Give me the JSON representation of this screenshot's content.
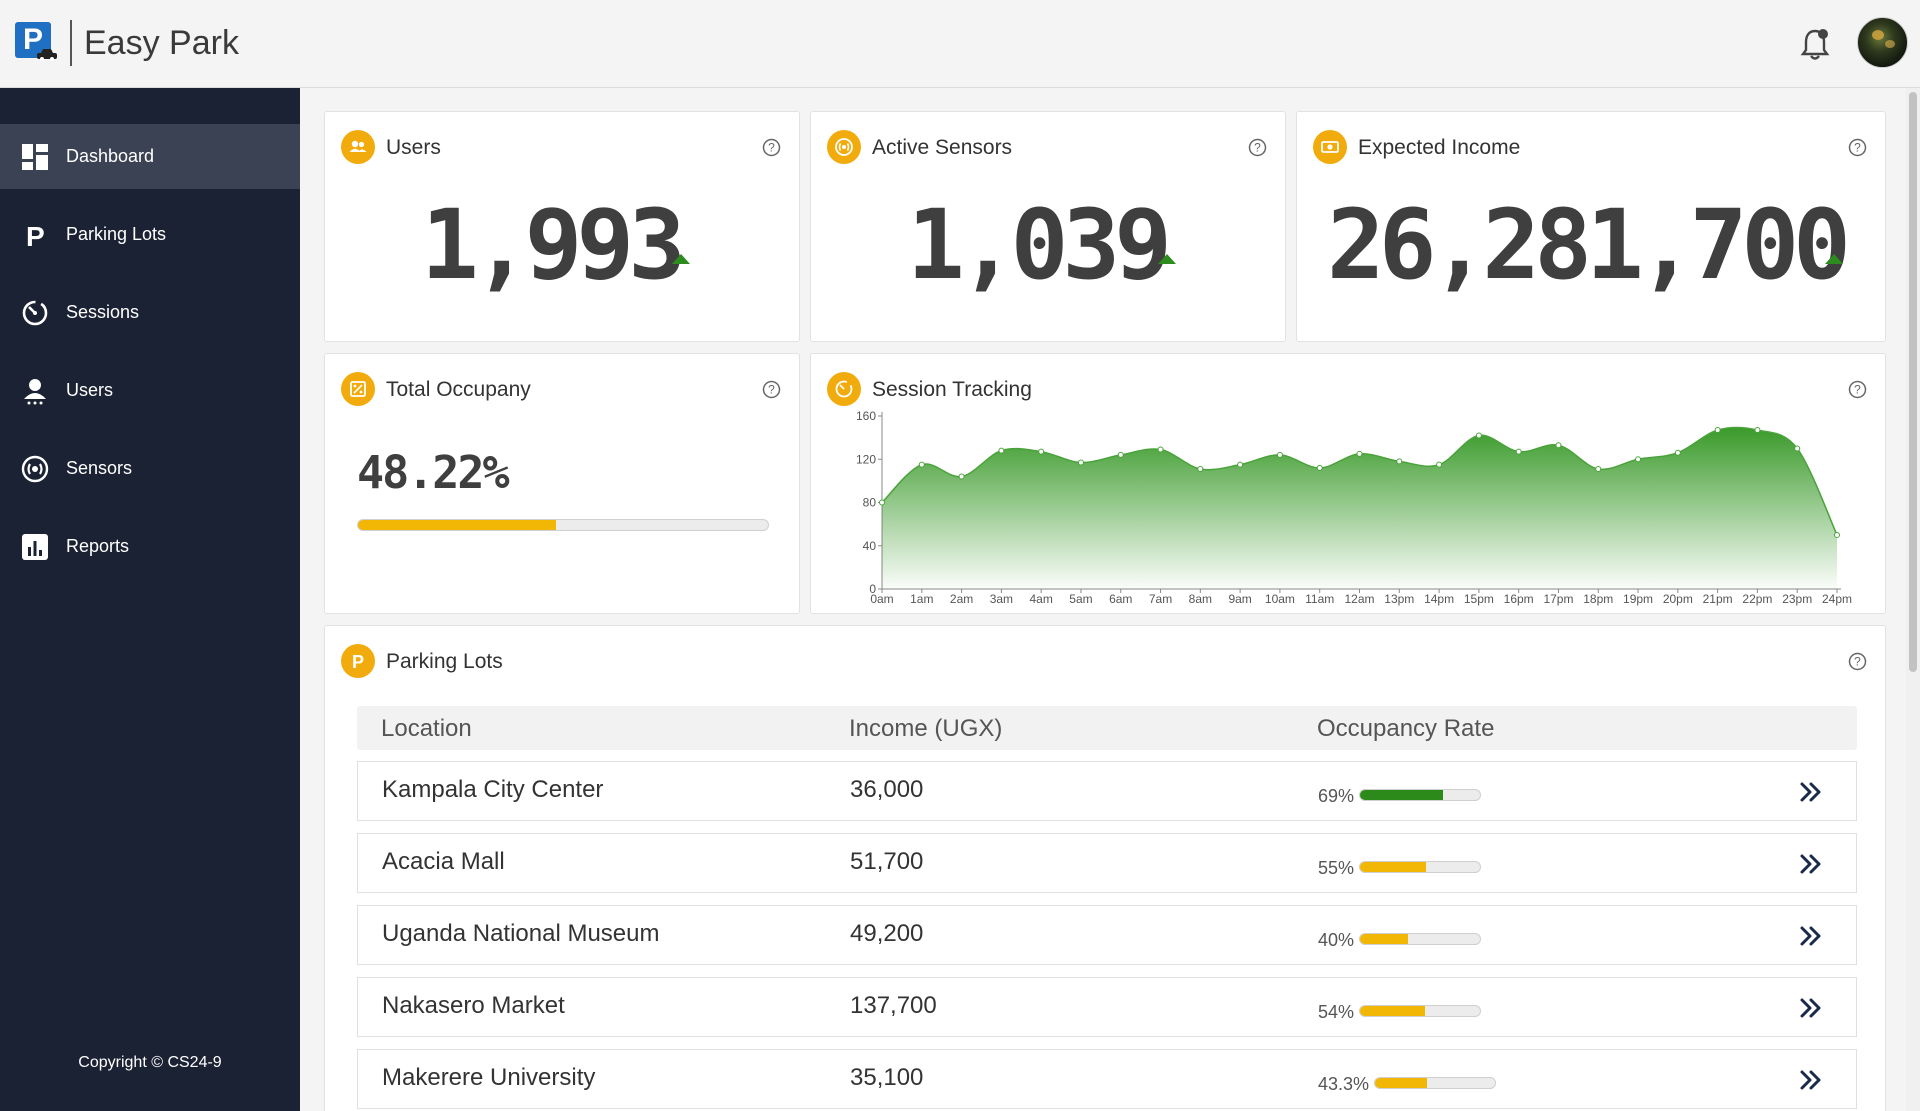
{
  "app": {
    "title": "Easy Park"
  },
  "sidebar": {
    "items": [
      {
        "label": "Dashboard"
      },
      {
        "label": "Parking Lots"
      },
      {
        "label": "Sessions"
      },
      {
        "label": "Users"
      },
      {
        "label": "Sensors"
      },
      {
        "label": "Reports"
      }
    ],
    "copyright": "Copyright © CS24-9"
  },
  "stats": {
    "users": {
      "title": "Users",
      "value": "1,993"
    },
    "sensors": {
      "title": "Active Sensors",
      "value": "1,039"
    },
    "income": {
      "title": "Expected Income",
      "value": "26,281,700"
    },
    "occupancy": {
      "title": "Total Occupany",
      "value": "48.22%",
      "fraction": 0.4822
    }
  },
  "session_tracking": {
    "title": "Session Tracking"
  },
  "chart_data": {
    "type": "area",
    "title": "Session Tracking",
    "x": [
      "0am",
      "1am",
      "2am",
      "3am",
      "4am",
      "5am",
      "6am",
      "7am",
      "8am",
      "9am",
      "10am",
      "11am",
      "12am",
      "13pm",
      "14pm",
      "15pm",
      "16pm",
      "17pm",
      "18pm",
      "19pm",
      "20pm",
      "21pm",
      "22pm",
      "23pm",
      "24pm"
    ],
    "points": [
      {
        "x": 0.0,
        "y": 80
      },
      {
        "x": 1.0,
        "y": 115
      },
      {
        "x": 2.0,
        "y": 104
      },
      {
        "x": 3.0,
        "y": 128
      },
      {
        "x": 4.0,
        "y": 127
      },
      {
        "x": 5.0,
        "y": 117
      },
      {
        "x": 6.0,
        "y": 124
      },
      {
        "x": 7.0,
        "y": 129
      },
      {
        "x": 8.0,
        "y": 111
      },
      {
        "x": 9.0,
        "y": 115
      },
      {
        "x": 10.0,
        "y": 124
      },
      {
        "x": 11.0,
        "y": 112
      },
      {
        "x": 12.0,
        "y": 125
      },
      {
        "x": 13.0,
        "y": 118
      },
      {
        "x": 14.0,
        "y": 115
      },
      {
        "x": 15.0,
        "y": 142
      },
      {
        "x": 16.0,
        "y": 127
      },
      {
        "x": 17.0,
        "y": 133
      },
      {
        "x": 18.0,
        "y": 111
      },
      {
        "x": 19.0,
        "y": 120
      },
      {
        "x": 20.0,
        "y": 126
      },
      {
        "x": 21.0,
        "y": 147
      },
      {
        "x": 22.0,
        "y": 147
      },
      {
        "x": 23.0,
        "y": 130
      },
      {
        "x": 24.0,
        "y": 50
      }
    ],
    "ylim": [
      0,
      160
    ],
    "yticks": [
      0,
      40,
      80,
      120,
      160
    ],
    "ytick_labels": [
      "0",
      "40",
      "80",
      "120",
      "160"
    ],
    "color": "#3a9a2a"
  },
  "parking_lots": {
    "title": "Parking Lots",
    "columns": [
      "Location",
      "Income (UGX)",
      "Occupancy Rate"
    ],
    "rows": [
      {
        "location": "Kampala City Center",
        "income": "36,000",
        "rate_text": "69%",
        "rate": 0.69,
        "color": "#2b8a1a"
      },
      {
        "location": "Acacia Mall",
        "income": "51,700",
        "rate_text": "55%",
        "rate": 0.55,
        "color": "#f2b705"
      },
      {
        "location": "Uganda National Museum",
        "income": "49,200",
        "rate_text": "40%",
        "rate": 0.4,
        "color": "#f2b705"
      },
      {
        "location": "Nakasero Market",
        "income": "137,700",
        "rate_text": "54%",
        "rate": 0.54,
        "color": "#f2b705"
      },
      {
        "location": "Makerere University",
        "income": "35,100",
        "rate_text": "43.3%",
        "rate": 0.433,
        "color": "#f2b705"
      }
    ]
  },
  "colors": {
    "accent": "#f2ab0c",
    "sidebar": "#1a2233",
    "up": "#2e8b1e"
  }
}
